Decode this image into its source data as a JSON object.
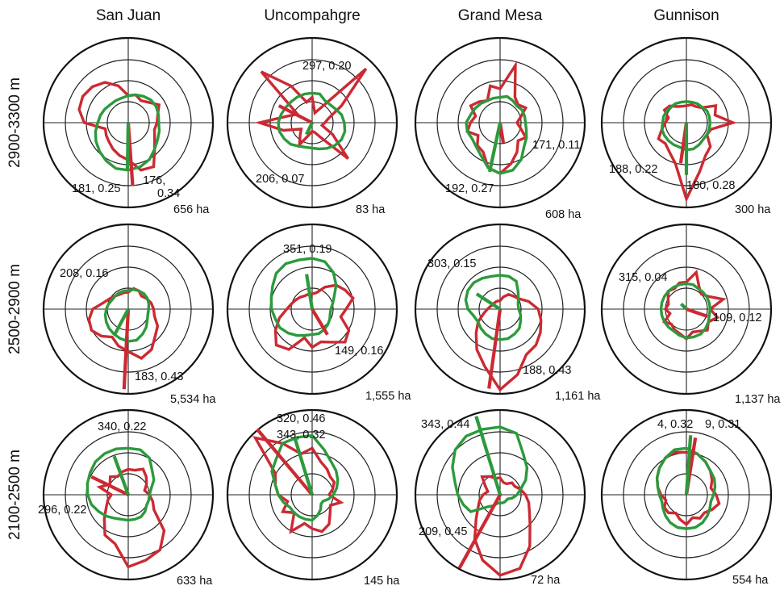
{
  "colors": {
    "series_red": "#cc2a33",
    "series_green": "#2c9a3c"
  },
  "chart_data": {
    "type": "polar-rose-grid",
    "column_labels": [
      "San Juan",
      "Uncompahgre",
      "Grand Mesa",
      "Gunnison"
    ],
    "row_labels": [
      "2900-3300 m",
      "2500-2900 m",
      "2100-2500 m"
    ],
    "grid": true,
    "series": [
      {
        "name": "",
        "color": "#cc2a33"
      },
      {
        "name": "",
        "color": "#2c9a3c"
      }
    ],
    "panels": [
      {
        "row": 0,
        "col": 0,
        "area": "656 ha",
        "annotations": [
          "181, 0.25",
          "176,",
          "0.34"
        ],
        "mean_vectors": [
          {
            "series": 0,
            "direction": 176,
            "length": 0.34
          },
          {
            "series": 1,
            "direction": 181,
            "length": 0.25
          }
        ],
        "red": [
          0.32,
          0.34,
          0.3,
          0.34,
          0.42,
          0.36,
          0.34,
          0.32,
          0.36,
          0.44,
          0.6,
          0.58,
          0.44,
          0.4,
          0.36,
          0.32,
          0.3,
          0.28,
          0.52,
          0.6,
          0.62,
          0.6,
          0.55,
          0.45
        ],
        "green": [
          0.32,
          0.34,
          0.36,
          0.38,
          0.38,
          0.37,
          0.36,
          0.38,
          0.4,
          0.44,
          0.5,
          0.54,
          0.56,
          0.56,
          0.52,
          0.48,
          0.44,
          0.4,
          0.36,
          0.34,
          0.32,
          0.3,
          0.3,
          0.3
        ]
      },
      {
        "row": 0,
        "col": 1,
        "area": "83 ha",
        "annotations": [
          "297, 0.20",
          "206, 0.07"
        ],
        "mean_vectors": [
          {
            "series": 0,
            "direction": 297,
            "length": 0.2
          },
          {
            "series": 1,
            "direction": 206,
            "length": 0.07
          }
        ],
        "red": [
          0.3,
          0.12,
          0.2,
          0.9,
          0.4,
          0.2,
          0.15,
          0.12,
          0.28,
          0.6,
          0.2,
          0.12,
          0.1,
          0.15,
          0.3,
          0.2,
          0.15,
          0.35,
          0.62,
          0.3,
          0.2,
          0.85,
          0.5,
          0.25
        ],
        "green": [
          0.35,
          0.35,
          0.3,
          0.3,
          0.32,
          0.36,
          0.38,
          0.4,
          0.4,
          0.38,
          0.35,
          0.32,
          0.3,
          0.3,
          0.32,
          0.36,
          0.38,
          0.4,
          0.4,
          0.38,
          0.36,
          0.35,
          0.35,
          0.35
        ]
      },
      {
        "row": 0,
        "col": 2,
        "area": "608 ha",
        "annotations": [
          "171, 0.11",
          "192, 0.27"
        ],
        "mean_vectors": [
          {
            "series": 0,
            "direction": 171,
            "length": 0.11
          },
          {
            "series": 1,
            "direction": 192,
            "length": 0.27
          }
        ],
        "red": [
          0.4,
          0.7,
          0.35,
          0.3,
          0.35,
          0.25,
          0.2,
          0.25,
          0.35,
          0.3,
          0.4,
          0.5,
          0.6,
          0.55,
          0.4,
          0.38,
          0.3,
          0.4,
          0.35,
          0.3,
          0.4,
          0.35,
          0.3,
          0.45
        ],
        "green": [
          0.3,
          0.32,
          0.3,
          0.28,
          0.3,
          0.3,
          0.3,
          0.32,
          0.36,
          0.4,
          0.5,
          0.58,
          0.6,
          0.55,
          0.45,
          0.4,
          0.38,
          0.4,
          0.4,
          0.36,
          0.34,
          0.32,
          0.3,
          0.3
        ]
      },
      {
        "row": 0,
        "col": 3,
        "area": "300 ha",
        "annotations": [
          "188, 0.22",
          "180, 0.28"
        ],
        "mean_vectors": [
          {
            "series": 0,
            "direction": 188,
            "length": 0.22
          },
          {
            "series": 1,
            "direction": 180,
            "length": 0.28
          }
        ],
        "red": [
          0.2,
          0.22,
          0.22,
          0.25,
          0.4,
          0.35,
          0.55,
          0.3,
          0.28,
          0.4,
          0.45,
          0.6,
          0.9,
          0.5,
          0.4,
          0.35,
          0.38,
          0.3,
          0.25,
          0.22,
          0.3,
          0.28,
          0.22,
          0.2
        ],
        "green": [
          0.25,
          0.25,
          0.26,
          0.26,
          0.28,
          0.28,
          0.28,
          0.28,
          0.28,
          0.28,
          0.3,
          0.32,
          0.32,
          0.3,
          0.3,
          0.3,
          0.3,
          0.3,
          0.28,
          0.28,
          0.27,
          0.26,
          0.26,
          0.25
        ]
      },
      {
        "row": 1,
        "col": 0,
        "area": "5,534 ha",
        "annotations": [
          "208, 0.16",
          "183, 0.43"
        ],
        "mean_vectors": [
          {
            "series": 0,
            "direction": 183,
            "length": 0.43
          },
          {
            "series": 1,
            "direction": 208,
            "length": 0.16
          }
        ],
        "red": [
          0.2,
          0.25,
          0.25,
          0.22,
          0.25,
          0.28,
          0.3,
          0.32,
          0.4,
          0.45,
          0.55,
          0.6,
          0.5,
          0.45,
          0.38,
          0.45,
          0.5,
          0.48,
          0.42,
          0.3,
          0.25,
          0.22,
          0.2,
          0.2
        ],
        "green": [
          0.22,
          0.24,
          0.25,
          0.26,
          0.26,
          0.25,
          0.24,
          0.24,
          0.26,
          0.3,
          0.34,
          0.38,
          0.38,
          0.36,
          0.34,
          0.32,
          0.3,
          0.28,
          0.26,
          0.24,
          0.22,
          0.22,
          0.22,
          0.22
        ]
      },
      {
        "row": 1,
        "col": 1,
        "area": "1,555 ha",
        "annotations": [
          "351, 0.19",
          "149, 0.16"
        ],
        "mean_vectors": [
          {
            "series": 0,
            "direction": 149,
            "length": 0.16
          },
          {
            "series": 1,
            "direction": 351,
            "length": 0.19
          }
        ],
        "red": [
          0.18,
          0.2,
          0.3,
          0.4,
          0.45,
          0.5,
          0.4,
          0.35,
          0.5,
          0.55,
          0.45,
          0.4,
          0.45,
          0.35,
          0.55,
          0.6,
          0.5,
          0.4,
          0.3,
          0.25,
          0.22,
          0.2,
          0.18,
          0.18
        ],
        "green": [
          0.6,
          0.58,
          0.5,
          0.4,
          0.3,
          0.25,
          0.22,
          0.22,
          0.24,
          0.26,
          0.28,
          0.3,
          0.3,
          0.32,
          0.36,
          0.4,
          0.44,
          0.45,
          0.48,
          0.5,
          0.54,
          0.6,
          0.62,
          0.6
        ]
      },
      {
        "row": 1,
        "col": 2,
        "area": "1,161 ha",
        "annotations": [
          "303, 0.15",
          "188, 0.43"
        ],
        "mean_vectors": [
          {
            "series": 0,
            "direction": 188,
            "length": 0.43
          },
          {
            "series": 1,
            "direction": 303,
            "length": 0.15
          }
        ],
        "red": [
          0.1,
          0.15,
          0.2,
          0.22,
          0.25,
          0.35,
          0.45,
          0.5,
          0.55,
          0.6,
          0.62,
          0.8,
          0.95,
          0.7,
          0.55,
          0.4,
          0.3,
          0.2,
          0.15,
          0.12,
          0.1,
          0.1,
          0.1,
          0.1
        ],
        "green": [
          0.4,
          0.4,
          0.38,
          0.3,
          0.25,
          0.22,
          0.22,
          0.25,
          0.28,
          0.32,
          0.34,
          0.36,
          0.36,
          0.36,
          0.34,
          0.32,
          0.3,
          0.32,
          0.38,
          0.42,
          0.44,
          0.44,
          0.42,
          0.4
        ]
      },
      {
        "row": 1,
        "col": 3,
        "area": "1,137 ha",
        "annotations": [
          "315, 0.04",
          "109, 0.12"
        ],
        "mean_vectors": [
          {
            "series": 0,
            "direction": 109,
            "length": 0.12
          },
          {
            "series": 1,
            "direction": 315,
            "length": 0.04
          }
        ],
        "red": [
          0.32,
          0.45,
          0.3,
          0.25,
          0.3,
          0.45,
          0.28,
          0.38,
          0.3,
          0.35,
          0.3,
          0.28,
          0.35,
          0.3,
          0.28,
          0.25,
          0.3,
          0.2,
          0.25,
          0.22,
          0.25,
          0.3,
          0.28,
          0.32
        ],
        "green": [
          0.3,
          0.3,
          0.28,
          0.28,
          0.28,
          0.28,
          0.28,
          0.28,
          0.3,
          0.32,
          0.34,
          0.34,
          0.34,
          0.32,
          0.3,
          0.3,
          0.3,
          0.3,
          0.3,
          0.3,
          0.3,
          0.3,
          0.3,
          0.3
        ]
      },
      {
        "row": 2,
        "col": 0,
        "area": "633 ha",
        "annotations": [
          "340, 0.22",
          "296, 0.22"
        ],
        "mean_vectors": [
          {
            "series": 0,
            "direction": 296,
            "length": 0.22
          },
          {
            "series": 1,
            "direction": 340,
            "length": 0.22
          }
        ],
        "red": [
          0.3,
          0.3,
          0.35,
          0.3,
          0.25,
          0.2,
          0.25,
          0.3,
          0.35,
          0.6,
          0.75,
          0.8,
          0.85,
          0.6,
          0.55,
          0.4,
          0.3,
          0.25,
          0.2,
          0.35,
          0.25,
          0.3,
          0.25,
          0.28
        ],
        "green": [
          0.55,
          0.55,
          0.5,
          0.4,
          0.35,
          0.28,
          0.25,
          0.25,
          0.25,
          0.28,
          0.3,
          0.3,
          0.3,
          0.3,
          0.32,
          0.36,
          0.4,
          0.45,
          0.48,
          0.5,
          0.52,
          0.55,
          0.56,
          0.56
        ]
      },
      {
        "row": 2,
        "col": 1,
        "area": "145 ha",
        "annotations": [
          "320, 0.46",
          "343, 0.32"
        ],
        "mean_vectors": [
          {
            "series": 0,
            "direction": 320,
            "length": 0.46
          },
          {
            "series": 1,
            "direction": 343,
            "length": 0.32
          }
        ],
        "red": [
          0.55,
          0.4,
          0.35,
          0.3,
          0.3,
          0.25,
          0.2,
          0.35,
          0.25,
          0.3,
          0.4,
          0.45,
          0.4,
          0.35,
          0.5,
          0.3,
          0.4,
          0.3,
          0.4,
          0.45,
          0.5,
          0.95,
          0.7,
          0.5
        ],
        "green": [
          0.7,
          0.55,
          0.45,
          0.4,
          0.35,
          0.3,
          0.25,
          0.2,
          0.15,
          0.15,
          0.2,
          0.25,
          0.3,
          0.3,
          0.3,
          0.3,
          0.3,
          0.35,
          0.4,
          0.45,
          0.55,
          0.6,
          0.7,
          0.7
        ]
      },
      {
        "row": 2,
        "col": 2,
        "area": "72 ha",
        "annotations": [
          "343, 0.44",
          "209, 0.45"
        ],
        "mean_vectors": [
          {
            "series": 0,
            "direction": 209,
            "length": 0.45
          },
          {
            "series": 1,
            "direction": 343,
            "length": 0.44
          }
        ],
        "red": [
          0.2,
          0.15,
          0.15,
          0.2,
          0.2,
          0.25,
          0.3,
          0.35,
          0.4,
          0.5,
          0.7,
          0.9,
          0.95,
          0.8,
          0.6,
          0.4,
          0.3,
          0.25,
          0.2,
          0.15,
          0.2,
          0.3,
          0.25,
          0.2
        ],
        "green": [
          0.8,
          0.75,
          0.55,
          0.45,
          0.35,
          0.25,
          0.2,
          0.15,
          0.1,
          0.1,
          0.1,
          0.1,
          0.1,
          0.1,
          0.15,
          0.2,
          0.4,
          0.45,
          0.5,
          0.55,
          0.65,
          0.75,
          0.8,
          0.8
        ]
      },
      {
        "row": 2,
        "col": 3,
        "area": "554 ha",
        "annotations": [
          "4, 0.32",
          "9, 0.31"
        ],
        "mean_vectors": [
          {
            "series": 0,
            "direction": 9,
            "length": 0.31
          },
          {
            "series": 1,
            "direction": 4,
            "length": 0.32
          }
        ],
        "red": [
          0.5,
          0.5,
          0.45,
          0.4,
          0.35,
          0.3,
          0.35,
          0.4,
          0.35,
          0.3,
          0.32,
          0.28,
          0.35,
          0.3,
          0.25,
          0.3,
          0.3,
          0.25,
          0.3,
          0.35,
          0.4,
          0.45,
          0.5,
          0.52
        ],
        "green": [
          0.55,
          0.5,
          0.45,
          0.4,
          0.38,
          0.35,
          0.32,
          0.3,
          0.32,
          0.35,
          0.38,
          0.4,
          0.4,
          0.4,
          0.38,
          0.35,
          0.32,
          0.3,
          0.32,
          0.35,
          0.4,
          0.45,
          0.5,
          0.55
        ]
      }
    ]
  }
}
